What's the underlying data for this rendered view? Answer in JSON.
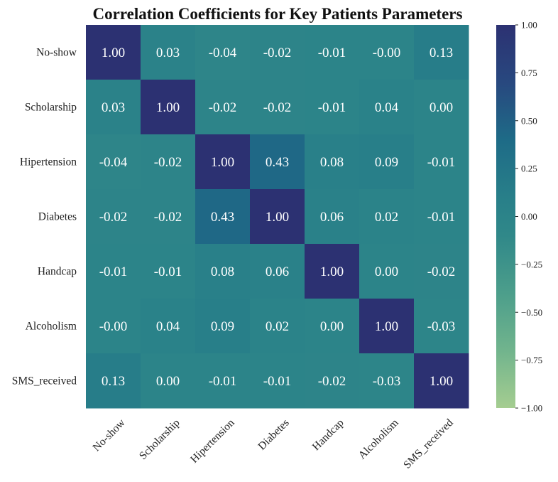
{
  "chart_data": {
    "type": "heatmap",
    "title": "Correlation Coefficients for Key Patients Parameters",
    "rows": [
      "No-show",
      "Scholarship",
      "Hipertension",
      "Diabetes",
      "Handcap",
      "Alcoholism",
      "SMS_received"
    ],
    "columns": [
      "No-show",
      "Scholarship",
      "Hipertension",
      "Diabetes",
      "Handcap",
      "Alcoholism",
      "SMS_received"
    ],
    "values": [
      [
        1.0,
        0.03,
        -0.04,
        -0.02,
        -0.01,
        -0.0,
        0.13
      ],
      [
        0.03,
        1.0,
        -0.02,
        -0.02,
        -0.01,
        0.04,
        0.0
      ],
      [
        -0.04,
        -0.02,
        1.0,
        0.43,
        0.08,
        0.09,
        -0.01
      ],
      [
        -0.02,
        -0.02,
        0.43,
        1.0,
        0.06,
        0.02,
        -0.01
      ],
      [
        -0.01,
        -0.01,
        0.08,
        0.06,
        1.0,
        0.0,
        -0.02
      ],
      [
        -0.0,
        0.04,
        0.09,
        0.02,
        0.0,
        1.0,
        -0.03
      ],
      [
        0.13,
        0.0,
        -0.01,
        -0.01,
        -0.02,
        -0.03,
        1.0
      ]
    ],
    "cell_labels": [
      [
        "1.00",
        "0.03",
        "-0.04",
        "-0.02",
        "-0.01",
        "-0.00",
        "0.13"
      ],
      [
        "0.03",
        "1.00",
        "-0.02",
        "-0.02",
        "-0.01",
        "0.04",
        "0.00"
      ],
      [
        "-0.04",
        "-0.02",
        "1.00",
        "0.43",
        "0.08",
        "0.09",
        "-0.01"
      ],
      [
        "-0.02",
        "-0.02",
        "0.43",
        "1.00",
        "0.06",
        "0.02",
        "-0.01"
      ],
      [
        "-0.01",
        "-0.01",
        "0.08",
        "0.06",
        "1.00",
        "0.00",
        "-0.02"
      ],
      [
        "-0.00",
        "0.04",
        "0.09",
        "0.02",
        "0.00",
        "1.00",
        "-0.03"
      ],
      [
        "0.13",
        "0.00",
        "-0.01",
        "-0.01",
        "-0.02",
        "-0.03",
        "1.00"
      ]
    ],
    "colorbar": {
      "range": [
        -1.0,
        1.0
      ],
      "ticks": [
        1.0,
        0.75,
        0.5,
        0.25,
        0.0,
        -0.25,
        -0.5,
        -0.75,
        -1.0
      ],
      "tick_labels": [
        "1.00",
        "0.75",
        "0.50",
        "0.25",
        "0.00",
        "−0.25",
        "−0.50",
        "−0.75",
        "−1.00"
      ],
      "colormap": "crest",
      "color_low": "#a5cd90",
      "color_high": "#2c3172"
    },
    "annotation_color": "#ffffff",
    "grid": false
  }
}
